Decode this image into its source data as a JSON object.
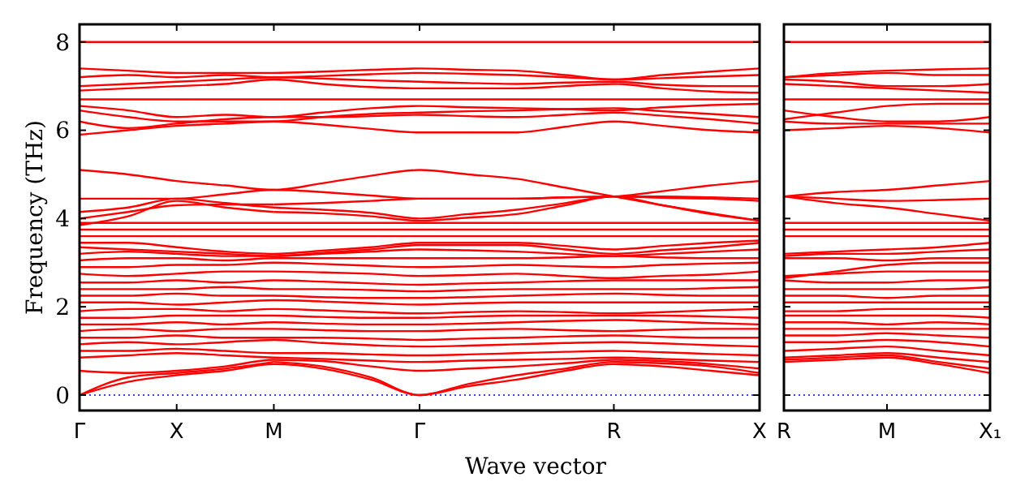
{
  "chart_data": [
    {
      "type": "line",
      "xlabel": "Wave vector",
      "ylabel": "Frequency (THz)",
      "categories": [
        "Γ",
        null,
        "X",
        null,
        "M",
        null,
        null,
        "Γ",
        null,
        null,
        null,
        "R",
        null,
        null,
        "X"
      ],
      "ylim": [
        -0.35,
        8.4
      ],
      "yticks": [
        0,
        2,
        4,
        6,
        8
      ],
      "ref_lines": [
        {
          "axis": "y",
          "value": 0,
          "color": "#0000ff",
          "line_style": "dotted"
        }
      ],
      "series": [
        {
          "color": "#ff0000",
          "values": [
            0,
            0.3,
            0.45,
            0.55,
            0.7,
            0.6,
            0.35,
            0,
            0.2,
            0.35,
            0.55,
            0.7,
            0.65,
            0.55,
            0.45
          ]
        },
        {
          "color": "#ff0000",
          "values": [
            0,
            0.4,
            0.5,
            0.6,
            0.75,
            null,
            null,
            null,
            null,
            null,
            null,
            null,
            null,
            null,
            null
          ]
        },
        {
          "color": "#ff0000",
          "values": [
            null,
            null,
            null,
            null,
            0.75,
            0.65,
            0.4,
            0,
            0.25,
            0.45,
            0.6,
            0.75,
            0.72,
            0.65,
            0.5
          ]
        },
        {
          "color": "#ff0000",
          "values": [
            0.55,
            0.5,
            0.55,
            0.65,
            0.8,
            0.77,
            0.65,
            0.55,
            0.6,
            0.65,
            0.72,
            0.8,
            0.77,
            0.7,
            0.6
          ]
        },
        {
          "color": "#ff0000",
          "values": [
            0.85,
            0.9,
            0.95,
            0.9,
            0.85,
            0.82,
            0.78,
            0.75,
            0.78,
            0.8,
            0.82,
            0.85,
            0.82,
            0.78,
            0.75
          ]
        },
        {
          "color": "#ff0000",
          "values": [
            1.0,
            1.0,
            1.05,
            1.0,
            0.95,
            0.95,
            0.92,
            0.9,
            0.92,
            0.95,
            0.98,
            1.0,
            0.97,
            0.93,
            0.9
          ]
        },
        {
          "color": "#ff0000",
          "values": [
            1.15,
            1.2,
            1.15,
            1.2,
            1.25,
            1.18,
            1.13,
            1.1,
            1.12,
            1.15,
            1.18,
            1.2,
            1.17,
            1.13,
            1.1
          ]
        },
        {
          "color": "#ff0000",
          "values": [
            1.3,
            1.3,
            1.35,
            1.3,
            1.3,
            1.3,
            1.28,
            1.25,
            1.28,
            1.3,
            1.33,
            1.35,
            1.32,
            1.3,
            1.3
          ]
        },
        {
          "color": "#ff0000",
          "values": [
            1.45,
            1.5,
            1.45,
            1.5,
            1.5,
            1.47,
            1.45,
            1.45,
            1.48,
            1.5,
            1.47,
            1.45,
            1.48,
            1.5,
            1.5
          ]
        },
        {
          "color": "#ff0000",
          "values": [
            1.6,
            1.6,
            1.65,
            1.6,
            1.65,
            1.62,
            1.6,
            1.6,
            1.62,
            1.65,
            1.68,
            1.7,
            1.67,
            1.63,
            1.6
          ]
        },
        {
          "color": "#ff0000",
          "values": [
            1.75,
            1.75,
            1.8,
            1.8,
            1.8,
            1.77,
            1.75,
            1.75,
            1.78,
            1.8,
            1.8,
            1.8,
            1.8,
            1.78,
            1.75
          ]
        },
        {
          "color": "#ff0000",
          "values": [
            1.9,
            1.95,
            1.95,
            1.9,
            1.95,
            1.92,
            1.88,
            1.85,
            1.88,
            1.9,
            1.88,
            1.85,
            1.88,
            1.92,
            1.95
          ]
        },
        {
          "color": "#ff0000",
          "values": [
            2.1,
            2.1,
            2.05,
            2.1,
            2.15,
            2.12,
            2.08,
            2.05,
            2.08,
            2.1,
            2.1,
            2.1,
            2.1,
            2.1,
            2.1
          ]
        },
        {
          "color": "#ff0000",
          "values": [
            2.25,
            2.25,
            2.3,
            2.25,
            2.25,
            2.22,
            2.2,
            2.2,
            2.22,
            2.25,
            2.28,
            2.3,
            2.27,
            2.25,
            2.25
          ]
        },
        {
          "color": "#ff0000",
          "values": [
            2.4,
            2.4,
            2.4,
            2.45,
            2.4,
            2.4,
            2.38,
            2.35,
            2.38,
            2.4,
            2.4,
            2.4,
            2.4,
            2.42,
            2.45
          ]
        },
        {
          "color": "#ff0000",
          "values": [
            2.55,
            2.55,
            2.6,
            2.55,
            2.6,
            2.57,
            2.53,
            2.5,
            2.53,
            2.55,
            2.58,
            2.6,
            2.6,
            2.6,
            2.6
          ]
        },
        {
          "color": "#ff0000",
          "values": [
            2.75,
            2.7,
            2.75,
            2.8,
            2.8,
            2.78,
            2.75,
            2.7,
            2.72,
            2.75,
            2.7,
            2.65,
            2.7,
            2.73,
            2.8
          ]
        },
        {
          "color": "#ff0000",
          "values": [
            2.9,
            2.9,
            2.95,
            2.95,
            3.0,
            2.97,
            2.93,
            2.9,
            2.92,
            2.95,
            2.92,
            2.9,
            2.95,
            2.98,
            3.0
          ]
        },
        {
          "color": "#ff0000",
          "values": [
            3.05,
            3.1,
            3.1,
            3.05,
            3.1,
            3.1,
            3.1,
            3.1,
            3.1,
            3.1,
            3.12,
            3.15,
            3.12,
            3.1,
            3.1
          ]
        },
        {
          "color": "#ff0000",
          "values": [
            3.2,
            3.25,
            3.2,
            3.15,
            3.15,
            3.2,
            3.25,
            3.3,
            3.28,
            3.25,
            3.2,
            3.15,
            3.2,
            3.25,
            3.3
          ]
        },
        {
          "color": "#ff0000",
          "values": [
            3.35,
            3.3,
            3.25,
            3.2,
            3.15,
            3.22,
            3.3,
            3.4,
            3.4,
            3.4,
            3.3,
            3.2,
            3.28,
            3.35,
            3.45
          ]
        },
        {
          "color": "#ff0000",
          "values": [
            3.45,
            3.45,
            3.35,
            3.25,
            3.2,
            3.27,
            3.35,
            3.45,
            3.45,
            3.45,
            3.38,
            3.3,
            3.38,
            3.45,
            3.5
          ]
        },
        {
          "color": "#ff0000",
          "values": [
            3.6,
            3.6,
            3.6,
            3.6,
            3.6,
            3.6,
            3.6,
            3.6,
            3.6,
            3.6,
            3.6,
            3.6,
            3.6,
            3.6,
            3.6
          ]
        },
        {
          "color": "#ff0000",
          "values": [
            3.75,
            3.75,
            3.75,
            3.75,
            3.75,
            3.75,
            3.75,
            3.75,
            3.75,
            3.75,
            3.75,
            3.75,
            3.75,
            3.75,
            3.75
          ]
        },
        {
          "color": "#ff0000",
          "values": [
            3.9,
            3.9,
            3.9,
            3.9,
            3.9,
            3.9,
            3.9,
            3.9,
            3.9,
            3.9,
            3.9,
            3.9,
            3.9,
            3.9,
            3.9
          ]
        },
        {
          "color": "#ff0000",
          "values": [
            3.85,
            4.05,
            4.4,
            4.25,
            4.15,
            null,
            null,
            null,
            null,
            null,
            null,
            null,
            null,
            null,
            null
          ]
        },
        {
          "color": "#ff0000",
          "values": [
            null,
            null,
            null,
            null,
            4.15,
            4.12,
            4.05,
            3.95,
            4.02,
            4.1,
            4.3,
            4.5,
            4.3,
            4.1,
            3.95
          ]
        },
        {
          "color": "#ff0000",
          "values": [
            4.15,
            4.25,
            4.45,
            4.35,
            4.25,
            4.2,
            4.13,
            4.0,
            4.1,
            4.2,
            4.35,
            4.5,
            4.47,
            4.45,
            4.4
          ]
        },
        {
          "color": "#ff0000",
          "values": [
            4.0,
            4.15,
            4.3,
            4.32,
            4.32,
            null,
            null,
            null,
            null,
            null,
            null,
            null,
            null,
            null,
            null
          ]
        },
        {
          "color": "#ff0000",
          "values": [
            null,
            null,
            null,
            null,
            4.32,
            4.35,
            4.4,
            4.45,
            4.45,
            4.45,
            4.48,
            4.5,
            4.5,
            4.48,
            4.45
          ]
        },
        {
          "color": "#ff0000",
          "values": [
            4.45,
            4.45,
            4.45,
            4.55,
            4.65,
            4.6,
            4.52,
            4.45,
            4.45,
            4.45,
            4.48,
            4.5,
            4.62,
            4.75,
            4.85
          ]
        },
        {
          "color": "#ff0000",
          "values": [
            5.1,
            5.0,
            4.85,
            4.75,
            4.65,
            4.8,
            4.97,
            5.1,
            5.0,
            4.9,
            4.7,
            4.5,
            4.3,
            4.12,
            3.95
          ]
        },
        {
          "color": "#ff0000",
          "values": [
            5.9,
            6.0,
            6.1,
            6.15,
            6.2,
            6.13,
            6.03,
            5.95,
            5.95,
            5.95,
            6.08,
            6.2,
            6.1,
            6.0,
            5.95
          ]
        },
        {
          "color": "#ff0000",
          "values": [
            6.2,
            6.05,
            6.15,
            6.25,
            6.3,
            6.3,
            6.32,
            6.35,
            6.32,
            6.3,
            6.35,
            6.4,
            6.33,
            6.25,
            6.15
          ]
        },
        {
          "color": "#ff0000",
          "values": [
            6.45,
            6.3,
            6.2,
            6.2,
            6.2,
            6.3,
            6.37,
            6.4,
            6.43,
            6.45,
            6.48,
            6.5,
            6.43,
            6.37,
            6.3
          ]
        },
        {
          "color": "#ff0000",
          "values": [
            6.55,
            6.45,
            6.3,
            6.35,
            6.3,
            6.4,
            6.5,
            6.55,
            6.52,
            6.5,
            6.48,
            6.45,
            6.52,
            6.57,
            6.6
          ]
        },
        {
          "color": "#ff0000",
          "values": [
            6.7,
            6.7,
            6.7,
            6.7,
            6.7,
            6.7,
            6.7,
            6.7,
            6.7,
            6.7,
            6.7,
            6.7,
            6.7,
            6.7,
            6.7
          ]
        },
        {
          "color": "#ff0000",
          "values": [
            6.9,
            6.95,
            7.0,
            7.05,
            7.15,
            7.05,
            6.98,
            6.95,
            6.95,
            6.95,
            7.0,
            7.05,
            6.95,
            6.88,
            6.85
          ]
        },
        {
          "color": "#ff0000",
          "values": [
            7.0,
            7.05,
            7.1,
            7.15,
            7.2,
            7.17,
            7.13,
            7.1,
            7.07,
            7.05,
            7.08,
            7.1,
            7.03,
            7.0,
            7.0
          ]
        },
        {
          "color": "#ff0000",
          "values": [
            7.2,
            7.25,
            7.2,
            7.25,
            7.2,
            7.23,
            7.27,
            7.3,
            7.28,
            7.25,
            7.2,
            7.15,
            7.18,
            7.22,
            7.25
          ]
        },
        {
          "color": "#ff0000",
          "values": [
            7.4,
            7.35,
            7.3,
            7.3,
            7.3,
            7.33,
            7.37,
            7.4,
            7.37,
            7.35,
            7.25,
            7.15,
            7.25,
            7.33,
            7.4
          ]
        },
        {
          "color": "#ff0000",
          "values": [
            8.0,
            8.0,
            8.0,
            8.0,
            8.0,
            8.0,
            8.0,
            8.0,
            8.0,
            8.0,
            8.0,
            8.0,
            8.0,
            8.0,
            8.0
          ]
        }
      ]
    },
    {
      "type": "line",
      "tick_labels": "x",
      "categories": [
        "R",
        null,
        "M",
        null,
        "X₁"
      ],
      "ylim": [
        -0.35,
        8.4
      ],
      "yticks": [
        0,
        2,
        4,
        6,
        8
      ],
      "ref_lines": [
        {
          "axis": "y",
          "value": 0,
          "color": "#0000ff",
          "line_style": "dotted"
        }
      ],
      "series": [
        {
          "color": "#ff0000",
          "values": [
            0.75,
            0.8,
            0.85,
            0.7,
            0.5
          ]
        },
        {
          "color": "#ff0000",
          "values": [
            0.8,
            0.85,
            0.9,
            0.75,
            0.6
          ]
        },
        {
          "color": "#ff0000",
          "values": [
            0.85,
            0.9,
            0.95,
            0.85,
            0.75
          ]
        },
        {
          "color": "#ff0000",
          "values": [
            1.0,
            1.05,
            1.1,
            1.0,
            0.9
          ]
        },
        {
          "color": "#ff0000",
          "values": [
            1.2,
            1.2,
            1.25,
            1.2,
            1.1
          ]
        },
        {
          "color": "#ff0000",
          "values": [
            1.35,
            1.35,
            1.4,
            1.35,
            1.3
          ]
        },
        {
          "color": "#ff0000",
          "values": [
            1.5,
            1.5,
            1.5,
            1.5,
            1.5
          ]
        },
        {
          "color": "#ff0000",
          "values": [
            1.65,
            1.65,
            1.6,
            1.65,
            1.6
          ]
        },
        {
          "color": "#ff0000",
          "values": [
            1.8,
            1.8,
            1.8,
            1.8,
            1.75
          ]
        },
        {
          "color": "#ff0000",
          "values": [
            1.9,
            1.9,
            1.95,
            1.95,
            1.95
          ]
        },
        {
          "color": "#ff0000",
          "values": [
            2.1,
            2.1,
            2.1,
            2.1,
            2.1
          ]
        },
        {
          "color": "#ff0000",
          "values": [
            2.25,
            2.25,
            2.2,
            2.25,
            2.25
          ]
        },
        {
          "color": "#ff0000",
          "values": [
            2.4,
            2.4,
            2.4,
            2.4,
            2.45
          ]
        },
        {
          "color": "#ff0000",
          "values": [
            2.6,
            2.55,
            2.55,
            2.6,
            2.6
          ]
        },
        {
          "color": "#ff0000",
          "values": [
            2.7,
            2.75,
            2.8,
            2.8,
            2.8
          ]
        },
        {
          "color": "#ff0000",
          "values": [
            2.65,
            2.8,
            2.95,
            3.0,
            3.0
          ]
        },
        {
          "color": "#ff0000",
          "values": [
            3.1,
            3.1,
            3.05,
            3.1,
            3.1
          ]
        },
        {
          "color": "#ff0000",
          "values": [
            3.15,
            3.2,
            3.2,
            3.25,
            3.3
          ]
        },
        {
          "color": "#ff0000",
          "values": [
            3.2,
            3.25,
            3.3,
            3.35,
            3.45
          ]
        },
        {
          "color": "#ff0000",
          "values": [
            3.6,
            3.6,
            3.6,
            3.6,
            3.6
          ]
        },
        {
          "color": "#ff0000",
          "values": [
            3.75,
            3.75,
            3.75,
            3.75,
            3.75
          ]
        },
        {
          "color": "#ff0000",
          "values": [
            3.9,
            3.9,
            3.9,
            3.9,
            3.9
          ]
        },
        {
          "color": "#ff0000",
          "values": [
            4.5,
            4.35,
            4.25,
            4.1,
            3.95
          ]
        },
        {
          "color": "#ff0000",
          "values": [
            4.5,
            4.45,
            4.4,
            4.42,
            4.45
          ]
        },
        {
          "color": "#ff0000",
          "values": [
            4.5,
            4.6,
            4.65,
            4.75,
            4.85
          ]
        },
        {
          "color": "#ff0000",
          "values": [
            6.0,
            6.05,
            6.1,
            6.05,
            5.95
          ]
        },
        {
          "color": "#ff0000",
          "values": [
            6.2,
            6.15,
            6.15,
            6.15,
            6.15
          ]
        },
        {
          "color": "#ff0000",
          "values": [
            6.45,
            6.3,
            6.2,
            6.2,
            6.3
          ]
        },
        {
          "color": "#ff0000",
          "values": [
            6.25,
            6.4,
            6.55,
            6.6,
            6.6
          ]
        },
        {
          "color": "#ff0000",
          "values": [
            6.7,
            6.7,
            6.7,
            6.7,
            6.7
          ]
        },
        {
          "color": "#ff0000",
          "values": [
            7.05,
            7.0,
            6.95,
            6.9,
            6.85
          ]
        },
        {
          "color": "#ff0000",
          "values": [
            7.15,
            7.1,
            7.0,
            7.0,
            7.05
          ]
        },
        {
          "color": "#ff0000",
          "values": [
            7.2,
            7.25,
            7.3,
            7.25,
            7.25
          ]
        },
        {
          "color": "#ff0000",
          "values": [
            7.2,
            7.3,
            7.35,
            7.38,
            7.4
          ]
        },
        {
          "color": "#ff0000",
          "values": [
            8.0,
            8.0,
            8.0,
            8.0,
            8.0
          ]
        }
      ]
    }
  ]
}
